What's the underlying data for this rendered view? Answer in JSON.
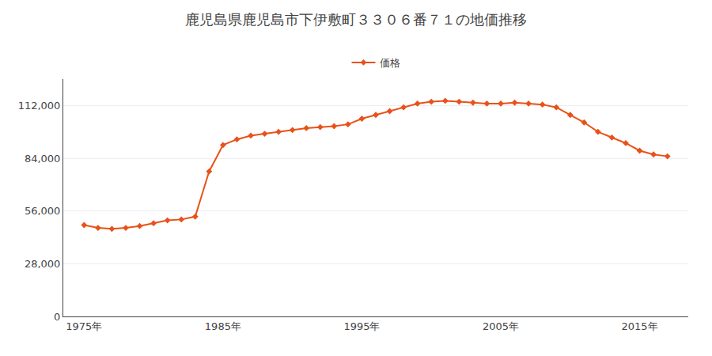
{
  "chart_data": {
    "type": "line",
    "title": "鹿児島県鹿児島市下伊敷町３３０６番７１の地価推移",
    "x": [
      1975,
      1976,
      1977,
      1978,
      1979,
      1980,
      1981,
      1982,
      1983,
      1984,
      1985,
      1986,
      1987,
      1988,
      1989,
      1990,
      1991,
      1992,
      1993,
      1994,
      1995,
      1996,
      1997,
      1998,
      1999,
      2000,
      2001,
      2002,
      2003,
      2004,
      2005,
      2006,
      2007,
      2008,
      2009,
      2010,
      2011,
      2012,
      2013,
      2014,
      2015,
      2016,
      2017
    ],
    "series": [
      {
        "name": "価格",
        "color": "#e8521a",
        "marker": "diamond",
        "line_style": "solid",
        "values": [
          48500,
          47000,
          46500,
          47000,
          48000,
          49500,
          51000,
          51500,
          53000,
          77000,
          91000,
          94000,
          96000,
          97000,
          98000,
          99000,
          100000,
          100500,
          101000,
          102000,
          105000,
          107000,
          109000,
          111000,
          113000,
          114000,
          114500,
          114000,
          113500,
          113000,
          113000,
          113500,
          113000,
          112500,
          111000,
          107000,
          103000,
          98000,
          95000,
          92000,
          88000,
          86000,
          85000
        ]
      }
    ],
    "xlim": [
      1973.5,
      2018.5
    ],
    "xticks": [
      {
        "value": 1975,
        "label": "1975年"
      },
      {
        "value": 1985,
        "label": "1985年"
      },
      {
        "value": 1995,
        "label": "1995年"
      },
      {
        "value": 2005,
        "label": "2005年"
      },
      {
        "value": 2015,
        "label": "2015年"
      }
    ],
    "ylim": [
      0,
      126000
    ],
    "yticks": [
      0,
      {
        "value": 28000,
        "label": "28,000"
      },
      {
        "value": 56000,
        "label": "56,000"
      },
      {
        "value": 84000,
        "label": "84,000"
      },
      {
        "value": 112000,
        "label": "112,000"
      }
    ],
    "grid": "y",
    "legend": "top"
  }
}
